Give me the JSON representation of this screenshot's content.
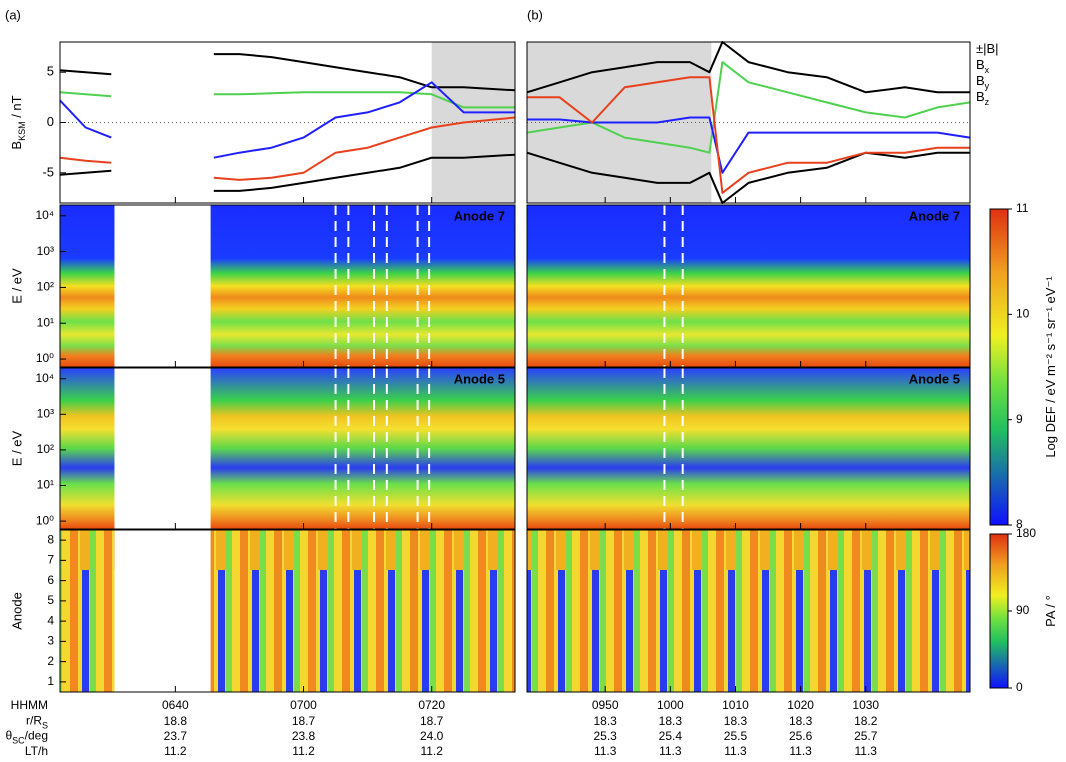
{
  "figure": {
    "energy_axis": {
      "label": "E / eV",
      "log": true,
      "ylim": [
        0.6,
        20000
      ],
      "yticks": [
        {
          "value": 1,
          "label": "10⁰"
        },
        {
          "value": 10,
          "label": "10¹"
        },
        {
          "value": 100,
          "label": "10²"
        },
        {
          "value": 1000,
          "label": "10³"
        },
        {
          "value": 10000,
          "label": "10⁴"
        }
      ]
    },
    "anode_axis": {
      "label": "Anode",
      "ylim": [
        0.5,
        8.5
      ],
      "yticks": [
        1,
        2,
        3,
        4,
        5,
        6,
        7,
        8
      ]
    },
    "spectrogram_labels": [
      "Anode 7",
      "Anode 5"
    ],
    "ephemeris_labels": [
      [
        "HHMM"
      ],
      [
        "r/R",
        "S"
      ],
      [
        "θ",
        "SC",
        "/deg"
      ],
      [
        "LT/h"
      ]
    ],
    "colorbars": [
      {
        "label": [
          "Log DEF / eV m⁻² s⁻¹ sr⁻¹ eV⁻¹"
        ],
        "lim": [
          8,
          11
        ],
        "ticks": [
          8,
          9,
          10,
          11
        ]
      },
      {
        "label": [
          "PA / °"
        ],
        "lim": [
          0,
          180
        ],
        "ticks": [
          0,
          90,
          180
        ]
      }
    ]
  },
  "chart_data": [
    {
      "type": "line",
      "panel_label": "(a)",
      "ylabel": [
        "B",
        "KSM",
        " / nT"
      ],
      "xlim": [
        382,
        453
      ],
      "ylim": [
        -8,
        8
      ],
      "yticks": [
        -5,
        0,
        5
      ],
      "reference_line": 0,
      "shade": [
        440,
        453
      ],
      "gap": [
        390.5,
        405.5
      ],
      "dashed_lines": [
        425,
        427,
        431,
        433,
        437.8,
        439.6
      ],
      "legend": false,
      "xticks": [
        {
          "value": 400,
          "label": "0640"
        },
        {
          "value": 420,
          "label": "0700"
        },
        {
          "value": 440,
          "label": "0720"
        }
      ],
      "ephemeris": [
        [
          "18.8",
          "23.7",
          "11.2"
        ],
        [
          "18.7",
          "23.8",
          "11.2"
        ],
        [
          "18.7",
          "24.0",
          "11.2"
        ]
      ],
      "x": [
        382,
        386,
        390,
        395,
        406,
        410,
        415,
        420,
        425,
        430,
        435,
        440,
        445,
        453
      ],
      "series": [
        {
          "name": [
            "±|B|"
          ],
          "color": "#000000",
          "mirror": true,
          "values": [
            5.2,
            5,
            4.8,
            null,
            6.8,
            6.8,
            6.5,
            6,
            5.5,
            5,
            4.5,
            3.5,
            3.5,
            3.2
          ]
        },
        {
          "name": [
            "B",
            "x"
          ],
          "color": "#4fd14f",
          "values": [
            3,
            2.8,
            2.6,
            null,
            2.8,
            2.8,
            2.9,
            3,
            3,
            3,
            3,
            2.8,
            1.5,
            1.5
          ]
        },
        {
          "name": [
            "B",
            "y"
          ],
          "color": "#2020ff",
          "values": [
            2.2,
            -0.5,
            -1.5,
            null,
            -3.5,
            -3,
            -2.5,
            -1.5,
            0.5,
            1,
            2,
            4,
            1,
            1
          ]
        },
        {
          "name": [
            "B",
            "z"
          ],
          "color": "#e8401c",
          "values": [
            -3.5,
            -3.8,
            -4,
            null,
            -5.5,
            -5.7,
            -5.5,
            -5,
            -3,
            -2.5,
            -1.5,
            -0.5,
            0,
            0.5
          ]
        }
      ]
    },
    {
      "type": "line",
      "panel_label": "(b)",
      "xlim": [
        578,
        646
      ],
      "ylim": [
        -8,
        8
      ],
      "reference_line": 0,
      "shade": [
        578,
        606.3
      ],
      "dashed_lines": [
        599.1,
        601.9
      ],
      "legend": true,
      "xticks": [
        {
          "value": 590,
          "label": "0950"
        },
        {
          "value": 600,
          "label": "1000"
        },
        {
          "value": 610,
          "label": "1010"
        },
        {
          "value": 620,
          "label": "1020"
        },
        {
          "value": 630,
          "label": "1030"
        }
      ],
      "ephemeris": [
        [
          "18.3",
          "25.3",
          "11.3"
        ],
        [
          "18.3",
          "25.4",
          "11.3"
        ],
        [
          "18.3",
          "25.5",
          "11.3"
        ],
        [
          "18.3",
          "25.6",
          "11.3"
        ],
        [
          "18.2",
          "25.7",
          "11.3"
        ]
      ],
      "x": [
        578,
        583,
        588,
        593,
        598,
        603,
        606,
        608,
        612,
        618,
        624,
        630,
        636,
        641,
        646
      ],
      "series": [
        {
          "name": [
            "±|B|"
          ],
          "color": "#000000",
          "mirror": true,
          "values": [
            3,
            4,
            5,
            5.5,
            6,
            6,
            5,
            8,
            6,
            5,
            4.5,
            3,
            3.5,
            3,
            3
          ]
        },
        {
          "name": [
            "B",
            "x"
          ],
          "color": "#4fd14f",
          "values": [
            -1,
            -0.5,
            0,
            -1.5,
            -2,
            -2.5,
            -3,
            6,
            4,
            3,
            2,
            1,
            0.5,
            1.5,
            2
          ]
        },
        {
          "name": [
            "B",
            "y"
          ],
          "color": "#2020ff",
          "values": [
            0.3,
            0.3,
            0,
            0,
            0,
            0.5,
            0.5,
            -5,
            -1,
            -1,
            -1,
            -1,
            -1,
            -1,
            -1.5
          ]
        },
        {
          "name": [
            "B",
            "z"
          ],
          "color": "#e8401c",
          "values": [
            2.5,
            2.5,
            0,
            3.5,
            4,
            4.5,
            4.5,
            -7,
            -5,
            -4,
            -4,
            -3,
            -3,
            -2.5,
            -2.5
          ]
        }
      ]
    }
  ]
}
